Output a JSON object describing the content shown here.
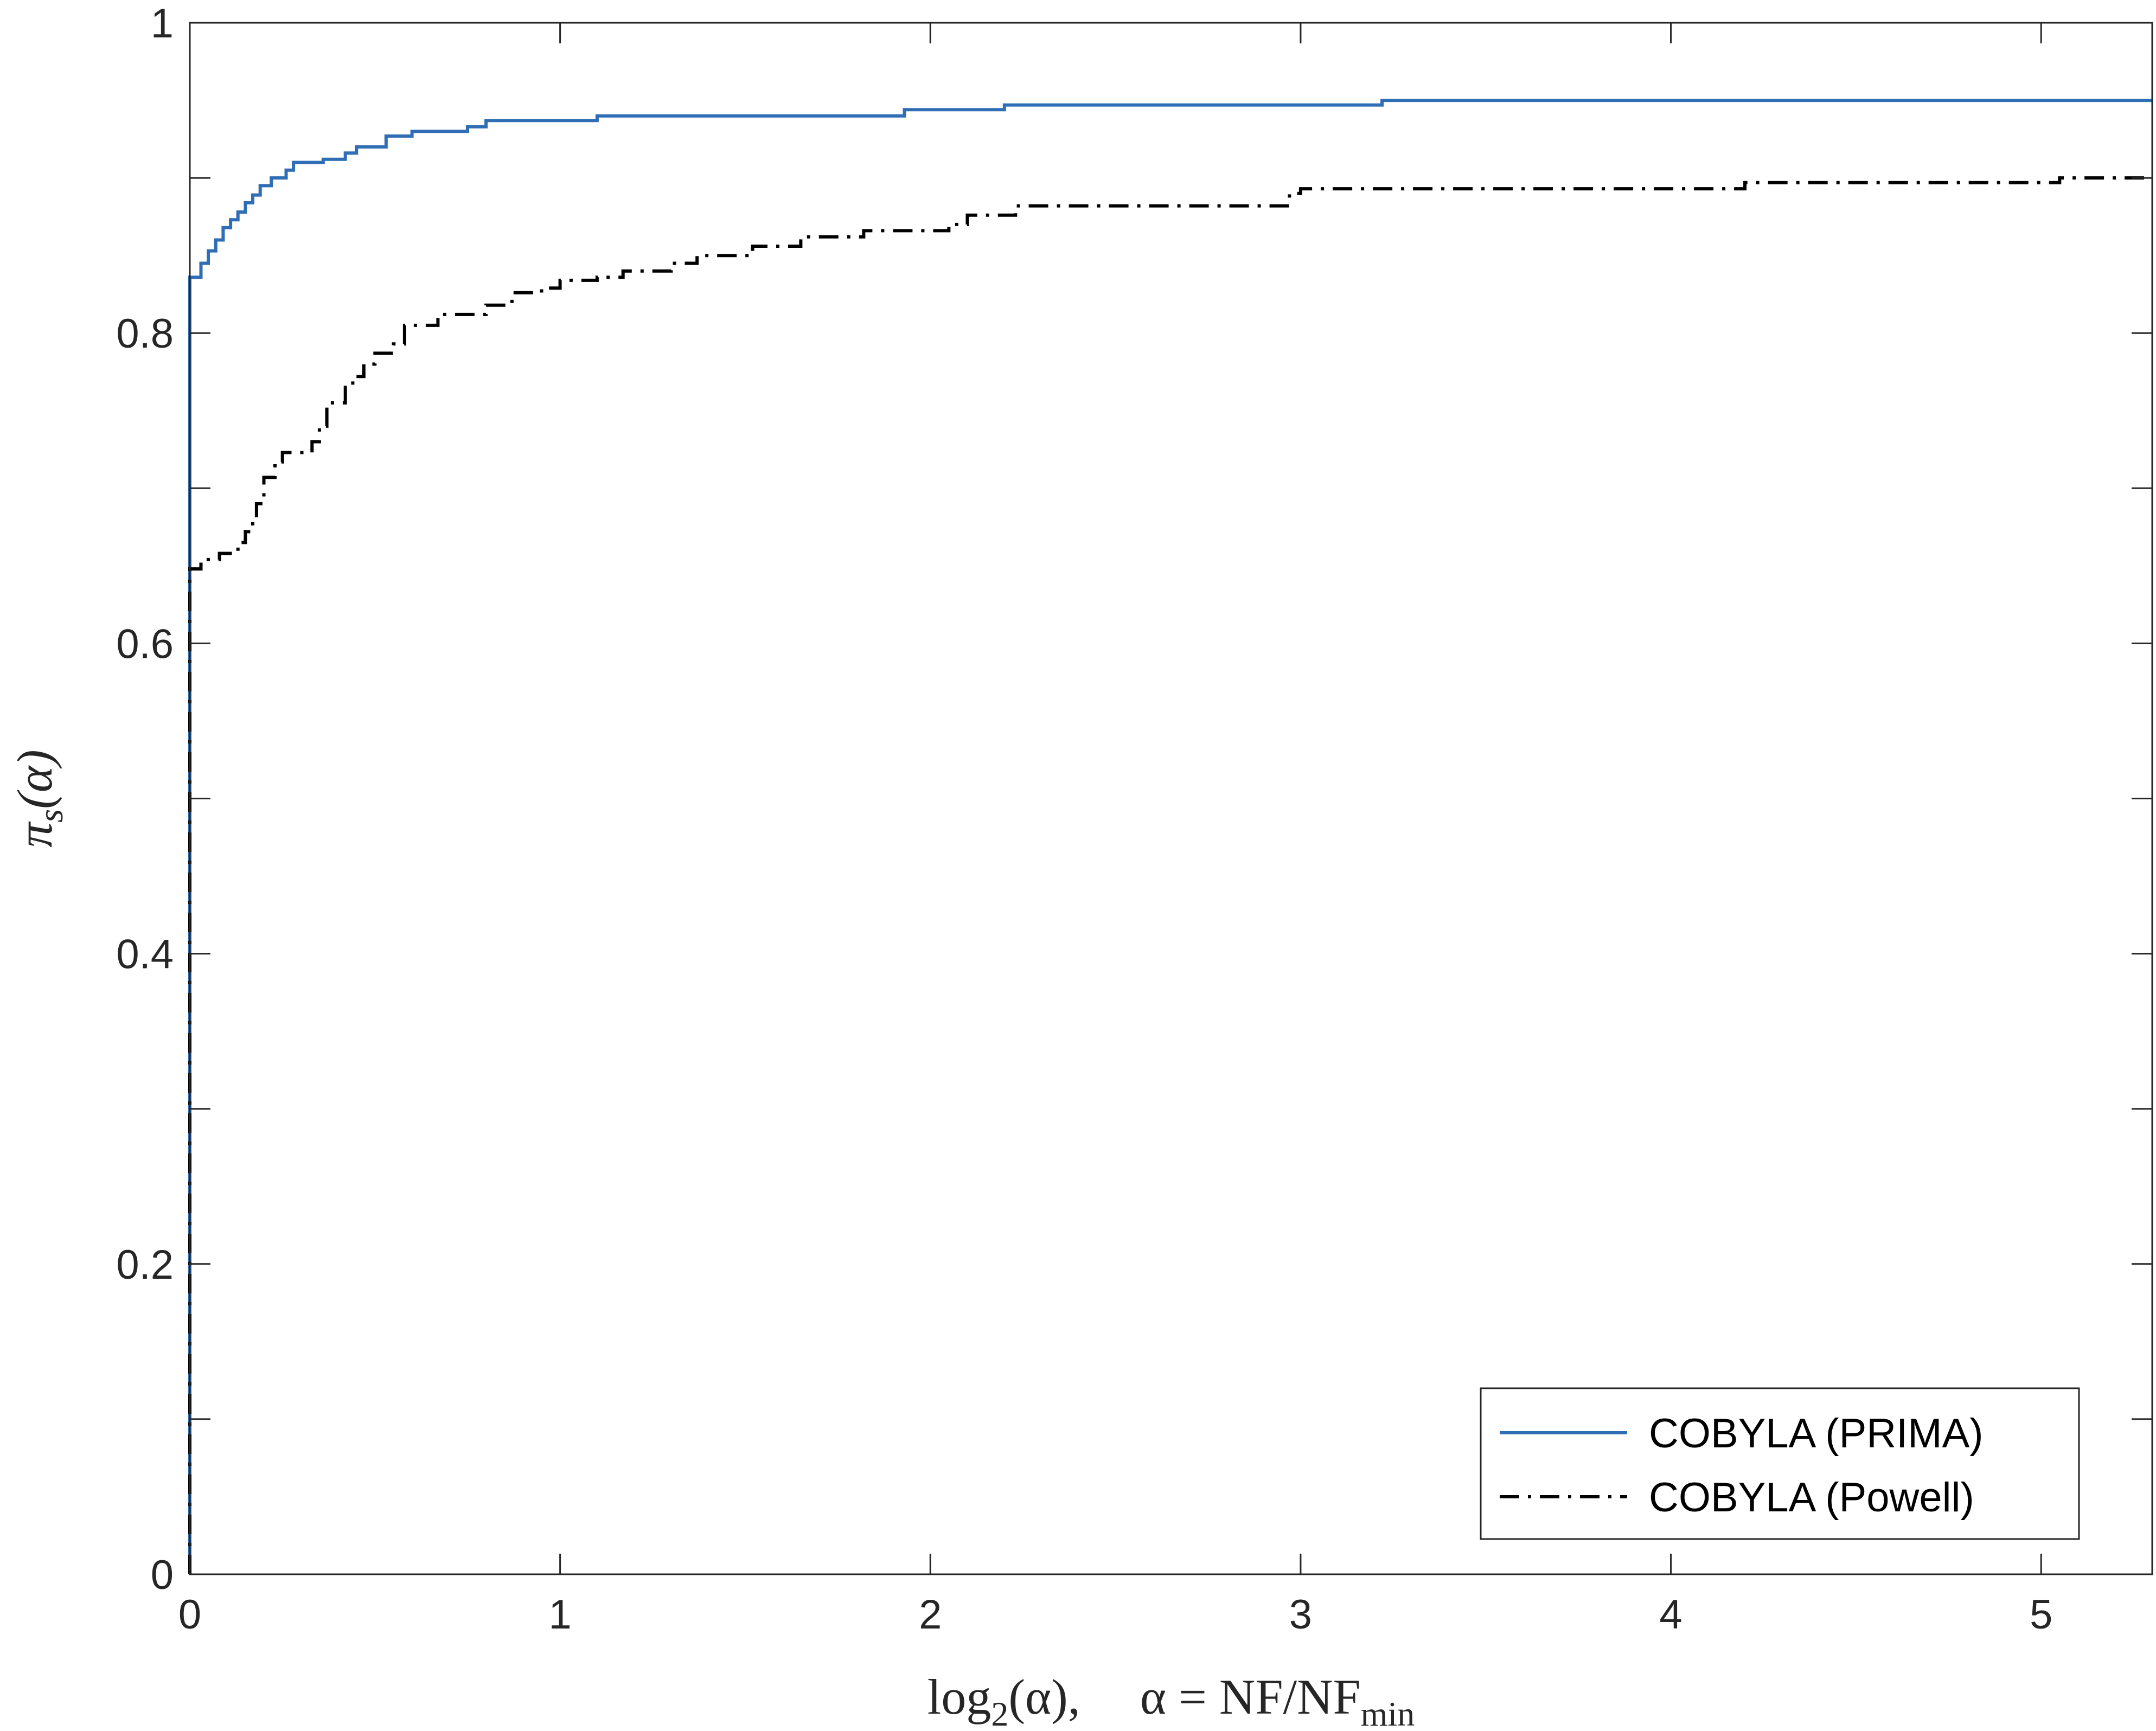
{
  "chart_data": {
    "type": "line",
    "title": "",
    "xlabel": {
      "log_text": "log",
      "log_sub": "2",
      "log_arg": "(α),",
      "alpha_def": "α = NF/NF",
      "alpha_sub": "min"
    },
    "ylabel": {
      "pi": "π",
      "pi_sub": "s",
      "arg": "(α)"
    },
    "xlim": [
      0,
      5.3
    ],
    "ylim": [
      0,
      1
    ],
    "xticks": [
      0,
      1,
      2,
      3,
      4,
      5
    ],
    "xtick_labels": [
      "0",
      "1",
      "2",
      "3",
      "4",
      "5"
    ],
    "yticks": [
      0,
      0.2,
      0.4,
      0.6,
      0.8,
      1
    ],
    "ytick_labels": [
      "0",
      "0.2",
      "0.4",
      "0.6",
      "0.8",
      "1"
    ],
    "minor_yticks": [
      0.1,
      0.3,
      0.5,
      0.7,
      0.9
    ],
    "grid": false,
    "legend_position": "bottom-right",
    "series": [
      {
        "name": "COBYLA (PRIMA)",
        "color": "#2f6db5",
        "line_style": "solid",
        "step": true,
        "points": [
          [
            0,
            0
          ],
          [
            0,
            0.836
          ],
          [
            0.03,
            0.845
          ],
          [
            0.05,
            0.853
          ],
          [
            0.07,
            0.86
          ],
          [
            0.09,
            0.868
          ],
          [
            0.11,
            0.873
          ],
          [
            0.13,
            0.878
          ],
          [
            0.15,
            0.884
          ],
          [
            0.17,
            0.889
          ],
          [
            0.19,
            0.895
          ],
          [
            0.22,
            0.9
          ],
          [
            0.26,
            0.905
          ],
          [
            0.28,
            0.91
          ],
          [
            0.36,
            0.912
          ],
          [
            0.42,
            0.916
          ],
          [
            0.45,
            0.92
          ],
          [
            0.53,
            0.927
          ],
          [
            0.6,
            0.93
          ],
          [
            0.75,
            0.933
          ],
          [
            0.8,
            0.937
          ],
          [
            1.1,
            0.94
          ],
          [
            1.93,
            0.944
          ],
          [
            2.2,
            0.947
          ],
          [
            3.22,
            0.95
          ],
          [
            5.3,
            0.95
          ]
        ]
      },
      {
        "name": "COBYLA (Powell)",
        "color": "#000000",
        "line_style": "dash-dot",
        "step": true,
        "points": [
          [
            0,
            0
          ],
          [
            0,
            0.648
          ],
          [
            0.03,
            0.654
          ],
          [
            0.08,
            0.658
          ],
          [
            0.13,
            0.665
          ],
          [
            0.15,
            0.672
          ],
          [
            0.17,
            0.68
          ],
          [
            0.18,
            0.69
          ],
          [
            0.2,
            0.707
          ],
          [
            0.23,
            0.717
          ],
          [
            0.25,
            0.723
          ],
          [
            0.33,
            0.73
          ],
          [
            0.35,
            0.74
          ],
          [
            0.37,
            0.755
          ],
          [
            0.42,
            0.765
          ],
          [
            0.44,
            0.772
          ],
          [
            0.47,
            0.78
          ],
          [
            0.5,
            0.787
          ],
          [
            0.55,
            0.793
          ],
          [
            0.58,
            0.805
          ],
          [
            0.67,
            0.812
          ],
          [
            0.8,
            0.818
          ],
          [
            0.87,
            0.826
          ],
          [
            0.95,
            0.829
          ],
          [
            1.0,
            0.834
          ],
          [
            1.1,
            0.836
          ],
          [
            1.17,
            0.84
          ],
          [
            1.3,
            0.845
          ],
          [
            1.37,
            0.85
          ],
          [
            1.52,
            0.856
          ],
          [
            1.65,
            0.862
          ],
          [
            1.82,
            0.866
          ],
          [
            2.05,
            0.87
          ],
          [
            2.1,
            0.876
          ],
          [
            2.23,
            0.882
          ],
          [
            2.97,
            0.89
          ],
          [
            3.0,
            0.893
          ],
          [
            4.2,
            0.897
          ],
          [
            5.05,
            0.9
          ],
          [
            5.3,
            0.9
          ]
        ]
      }
    ]
  }
}
